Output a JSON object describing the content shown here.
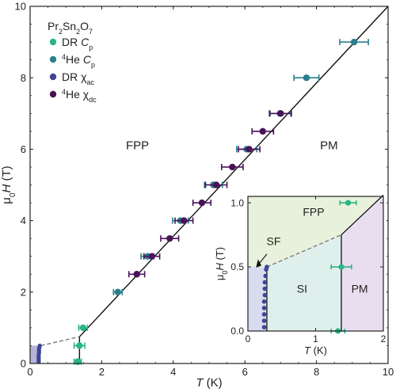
{
  "chart_data": [
    {
      "type": "scatter",
      "title": "",
      "xlabel": "T (K)",
      "ylabel": "μ0H (T)",
      "xlim": [
        0,
        10
      ],
      "ylim": [
        0,
        10
      ],
      "xticks": [
        "0",
        "2",
        "4",
        "6",
        "8",
        "10"
      ],
      "yticks": [
        "0",
        "2",
        "4",
        "6",
        "8",
        "10"
      ],
      "legend_title": "Pr2Sn2O7",
      "legend_position": "top-left",
      "region_labels": [
        {
          "text": "FPP",
          "x": 3.0,
          "y": 6.0
        },
        {
          "text": "PM",
          "x": 8.35,
          "y": 6.0
        }
      ],
      "series": [
        {
          "name": "DR Cp",
          "color": "#2bb585",
          "points": [
            {
              "x": 1.48,
              "y": 1.0,
              "xerr": 0.12
            },
            {
              "x": 1.38,
              "y": 0.5,
              "xerr": 0.15
            },
            {
              "x": 1.33,
              "y": 0.05,
              "xerr": 0.1
            }
          ]
        },
        {
          "name": "4He Cp",
          "color": "#2a7f8e",
          "points": [
            {
              "x": 2.45,
              "y": 2.0,
              "xerr": 0.12
            },
            {
              "x": 3.28,
              "y": 3.0,
              "xerr": 0.18
            },
            {
              "x": 4.2,
              "y": 4.0,
              "xerr": 0.22
            },
            {
              "x": 5.12,
              "y": 5.0,
              "xerr": 0.25
            },
            {
              "x": 6.05,
              "y": 6.0,
              "xerr": 0.28
            },
            {
              "x": 6.98,
              "y": 7.0,
              "xerr": 0.3
            },
            {
              "x": 7.72,
              "y": 8.0,
              "xerr": 0.35
            },
            {
              "x": 9.05,
              "y": 9.0,
              "xerr": 0.4
            }
          ]
        },
        {
          "name": "DR χac",
          "color": "#3f4594",
          "points": [
            {
              "x": 0.24,
              "y": 0.05
            },
            {
              "x": 0.24,
              "y": 0.1
            },
            {
              "x": 0.24,
              "y": 0.15
            },
            {
              "x": 0.24,
              "y": 0.2
            },
            {
              "x": 0.24,
              "y": 0.25
            },
            {
              "x": 0.25,
              "y": 0.3
            },
            {
              "x": 0.25,
              "y": 0.35
            },
            {
              "x": 0.25,
              "y": 0.4
            },
            {
              "x": 0.26,
              "y": 0.45
            },
            {
              "x": 0.27,
              "y": 0.5
            }
          ]
        },
        {
          "name": "4He χdc",
          "color": "#4a1259",
          "points": [
            {
              "x": 2.98,
              "y": 2.5,
              "xerr": 0.22
            },
            {
              "x": 3.4,
              "y": 3.0,
              "xerr": 0.22
            },
            {
              "x": 3.9,
              "y": 3.5,
              "xerr": 0.25
            },
            {
              "x": 4.3,
              "y": 4.0,
              "xerr": 0.25
            },
            {
              "x": 4.8,
              "y": 4.5,
              "xerr": 0.25
            },
            {
              "x": 5.2,
              "y": 5.0,
              "xerr": 0.3
            },
            {
              "x": 5.65,
              "y": 5.5,
              "xerr": 0.3
            },
            {
              "x": 6.12,
              "y": 6.0,
              "xerr": 0.3
            },
            {
              "x": 6.5,
              "y": 6.5,
              "xerr": 0.3
            },
            {
              "x": 7.0,
              "y": 7.0,
              "xerr": 0.3
            }
          ]
        }
      ],
      "phase_boundary": [
        [
          1.38,
          0.75
        ],
        [
          10.0,
          10.0
        ]
      ],
      "vertical_boundary": [
        [
          1.38,
          0.0
        ],
        [
          1.38,
          0.75
        ]
      ],
      "dashed_boundary": [
        [
          0.3,
          0.5
        ],
        [
          1.38,
          0.75
        ]
      ]
    },
    {
      "type": "scatter",
      "title": "",
      "xlabel": "T (K)",
      "ylabel": "μ0H (T)",
      "xlim": [
        0,
        2
      ],
      "ylim": [
        0,
        1.05
      ],
      "xticks": [
        "0",
        "1",
        "2"
      ],
      "yticks": [
        "0.0",
        "0.5",
        "1.0"
      ],
      "region_labels": [
        {
          "text": "FPP",
          "x": 0.97,
          "y": 0.9
        },
        {
          "text": "SF",
          "x": 0.38,
          "y": 0.67
        },
        {
          "text": "SI",
          "x": 0.8,
          "y": 0.3
        },
        {
          "text": "PM",
          "x": 1.65,
          "y": 0.3
        }
      ],
      "regions": [
        {
          "name": "FPP",
          "color": "#e8f1dc"
        },
        {
          "name": "SI",
          "color": "#dff0ec"
        },
        {
          "name": "PM",
          "color": "#e9def0"
        },
        {
          "name": "SF",
          "color": "#d9dcee"
        }
      ],
      "series": [
        {
          "name": "DR Cp",
          "color": "#2bb585",
          "points": [
            {
              "x": 1.48,
              "y": 1.0,
              "xerr": 0.12
            },
            {
              "x": 1.38,
              "y": 0.5,
              "xerr": 0.15
            },
            {
              "x": 1.33,
              "y": 0.0,
              "xerr": 0.1
            }
          ]
        },
        {
          "name": "DR χac",
          "color": "#3f4594",
          "points": [
            {
              "x": 0.24,
              "y": 0.03
            },
            {
              "x": 0.24,
              "y": 0.08
            },
            {
              "x": 0.24,
              "y": 0.13
            },
            {
              "x": 0.24,
              "y": 0.18
            },
            {
              "x": 0.24,
              "y": 0.23
            },
            {
              "x": 0.25,
              "y": 0.28
            },
            {
              "x": 0.25,
              "y": 0.33
            },
            {
              "x": 0.25,
              "y": 0.38
            },
            {
              "x": 0.26,
              "y": 0.43
            },
            {
              "x": 0.27,
              "y": 0.48
            },
            {
              "x": 0.28,
              "y": 0.5
            }
          ]
        }
      ]
    }
  ],
  "legend": [
    {
      "label": "DR",
      "italic": "C",
      "sub": "p",
      "color": "#2bb585"
    },
    {
      "label": "4He",
      "italic": "C",
      "sub": "p",
      "color": "#2a7f8e"
    },
    {
      "label": "DR χ",
      "italic": "",
      "sub": "ac",
      "color": "#3f4594"
    },
    {
      "label": "4He χ",
      "italic": "",
      "sub": "dc",
      "color": "#4a1259"
    }
  ]
}
